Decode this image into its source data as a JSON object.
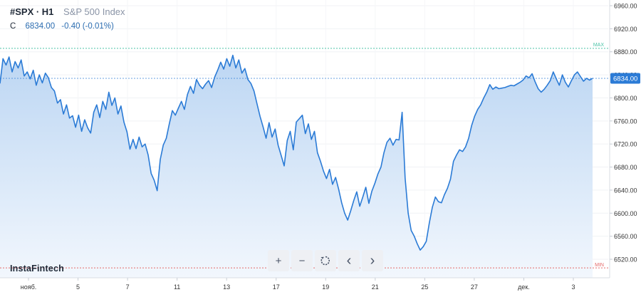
{
  "header": {
    "symbol": "#SPX · H1",
    "description": "S&P 500 Index",
    "close_label": "C",
    "close_value": "6834.00",
    "change": "-0.40 (-0.01%)"
  },
  "brand": "InstaFintech",
  "toolbar": [
    {
      "name": "zoom-in-button",
      "icon": "plus-icon",
      "glyph": "+"
    },
    {
      "name": "zoom-out-button",
      "icon": "minus-icon",
      "glyph": "−"
    },
    {
      "name": "reset-button",
      "icon": "reset-icon",
      "glyph": ""
    },
    {
      "name": "scroll-left-button",
      "icon": "chevron-left-icon",
      "glyph": "‹"
    },
    {
      "name": "scroll-right-button",
      "icon": "chevron-right-icon",
      "glyph": "›"
    }
  ],
  "colors": {
    "line": "#2b7bd6",
    "area_top": "#bcd6f3",
    "area_bottom": "#f2f7fd",
    "max_line": "#4cc3a8",
    "min_line": "#e46a6a",
    "price_tag": "#2b7bd6",
    "axis_text": "#333333"
  },
  "chart_data": {
    "type": "area",
    "title": "",
    "ylim": [
      6500,
      6970
    ],
    "y_ticks": [
      "6960.00",
      "6920.00",
      "6880.00",
      "6840.00",
      "6800.00",
      "6760.00",
      "6720.00",
      "6680.00",
      "6640.00",
      "6600.00",
      "6560.00",
      "6520.00"
    ],
    "x_ticks": [
      "нояб.",
      "5",
      "7",
      "11",
      "13",
      "17",
      "19",
      "21",
      "25",
      "27",
      "дек.",
      "3"
    ],
    "max_label": "MAX",
    "min_label": "MIN",
    "max_value": 6886,
    "min_value": 6505,
    "last_price": "6834.00",
    "last_value": 6834,
    "grid": true,
    "series": [
      {
        "values": [
          6825,
          6868,
          6857,
          6871,
          6845,
          6863,
          6852,
          6866,
          6838,
          6845,
          6833,
          6848,
          6822,
          6840,
          6826,
          6843,
          6835,
          6818,
          6812,
          6791,
          6797,
          6772,
          6788,
          6765,
          6769,
          6749,
          6770,
          6742,
          6762,
          6748,
          6739,
          6775,
          6788,
          6766,
          6794,
          6780,
          6810,
          6787,
          6800,
          6772,
          6786,
          6758,
          6741,
          6711,
          6728,
          6712,
          6732,
          6715,
          6720,
          6701,
          6669,
          6657,
          6639,
          6693,
          6718,
          6730,
          6755,
          6778,
          6770,
          6782,
          6794,
          6780,
          6806,
          6820,
          6808,
          6832,
          6822,
          6816,
          6824,
          6830,
          6818,
          6836,
          6848,
          6862,
          6850,
          6868,
          6855,
          6874,
          6852,
          6866,
          6843,
          6851,
          6832,
          6825,
          6812,
          6790,
          6768,
          6750,
          6730,
          6757,
          6732,
          6746,
          6718,
          6700,
          6682,
          6726,
          6742,
          6710,
          6758,
          6764,
          6770,
          6738,
          6755,
          6728,
          6742,
          6705,
          6690,
          6673,
          6660,
          6676,
          6650,
          6662,
          6642,
          6618,
          6600,
          6588,
          6604,
          6622,
          6637,
          6612,
          6628,
          6645,
          6617,
          6638,
          6652,
          6668,
          6680,
          6705,
          6723,
          6730,
          6718,
          6728,
          6727,
          6775,
          6661,
          6600,
          6570,
          6560,
          6547,
          6536,
          6542,
          6551,
          6583,
          6610,
          6628,
          6620,
          6618,
          6632,
          6643,
          6659,
          6690,
          6701,
          6710,
          6707,
          6715,
          6730,
          6752,
          6768,
          6780,
          6788,
          6800,
          6810,
          6823,
          6815,
          6819,
          6816,
          6817,
          6818,
          6820,
          6822,
          6821,
          6824,
          6827,
          6831,
          6838,
          6835,
          6842,
          6828,
          6816,
          6810,
          6815,
          6822,
          6830,
          6845,
          6833,
          6822,
          6840,
          6827,
          6819,
          6830,
          6840,
          6845,
          6837,
          6829,
          6834,
          6831,
          6834
        ]
      }
    ]
  }
}
